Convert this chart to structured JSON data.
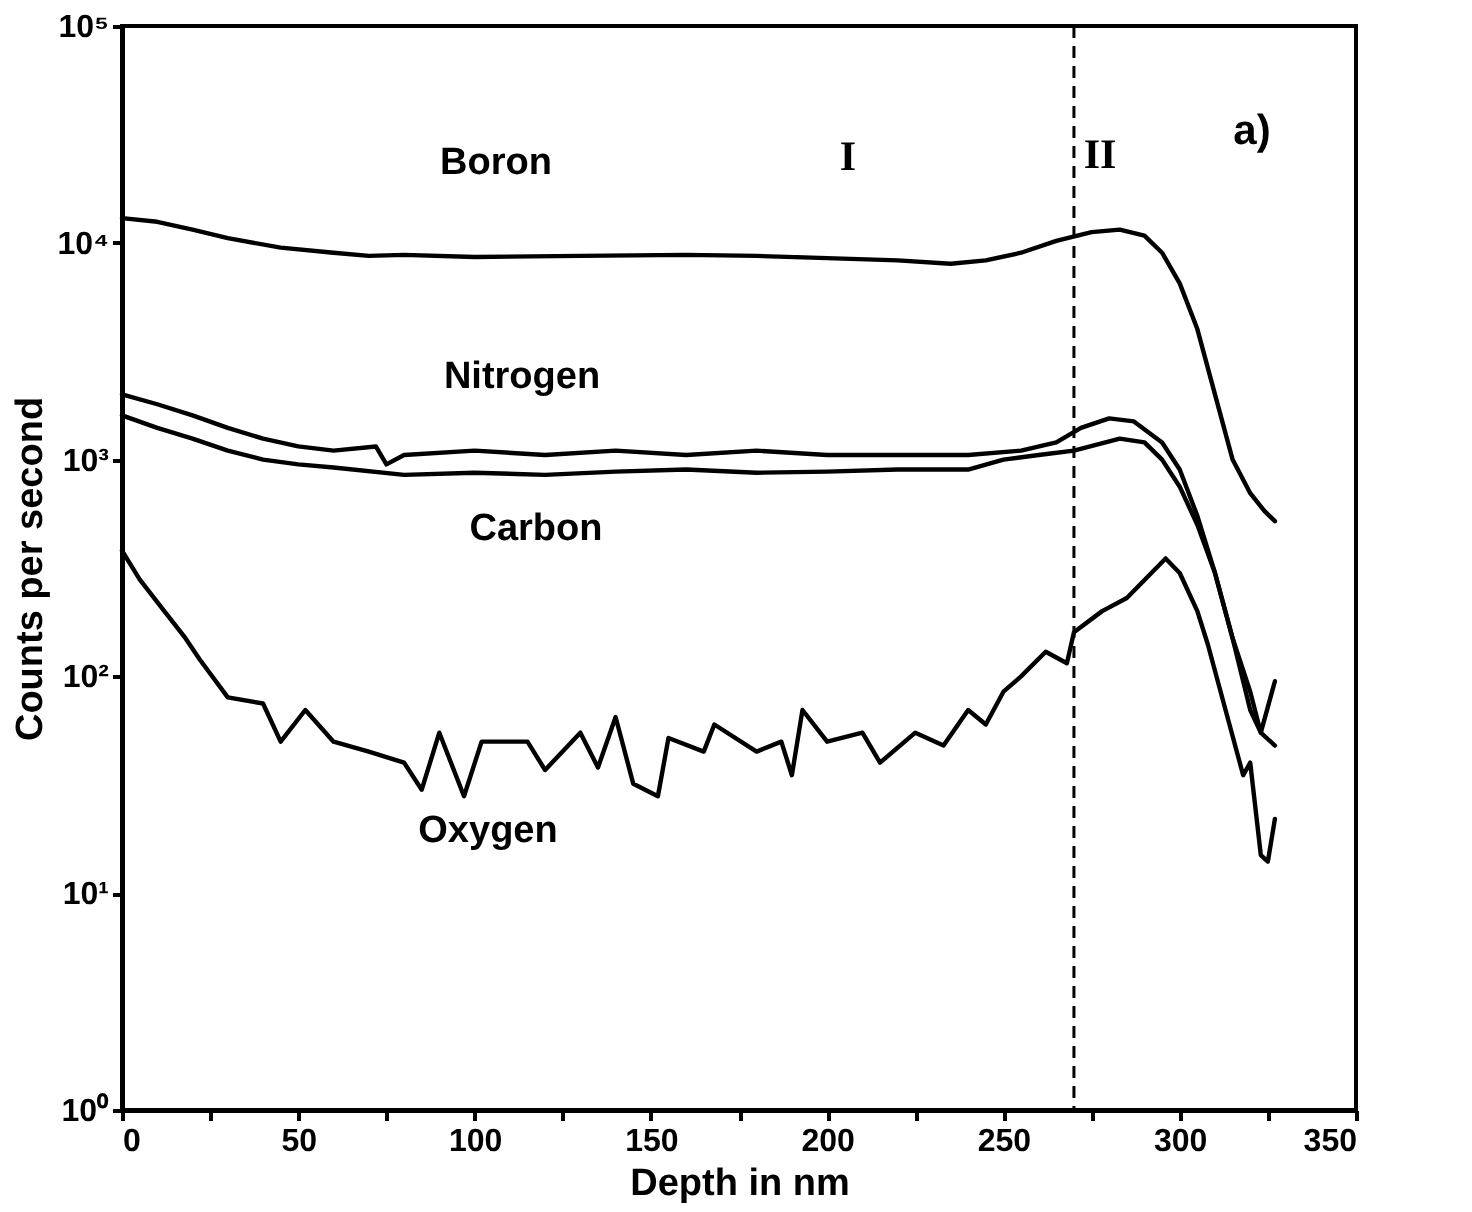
{
  "chart_data": {
    "type": "line",
    "xlabel": "Depth in nm",
    "ylabel": "Counts per second",
    "log": "y",
    "grid": false,
    "marker": "none",
    "line_style": "solid",
    "xlim": [
      0,
      350
    ],
    "ylim": [
      1,
      100000
    ],
    "xticks": [
      0,
      {
        "value": 25,
        "label": null
      },
      50,
      {
        "value": 75,
        "label": null
      },
      100,
      {
        "value": 125,
        "label": null
      },
      150,
      {
        "value": 175,
        "label": null
      },
      200,
      {
        "value": 225,
        "label": null
      },
      250,
      {
        "value": 275,
        "label": null
      },
      300,
      {
        "value": 325,
        "label": null
      },
      350
    ],
    "yticks": [
      {
        "value": 1,
        "label": "10⁰"
      },
      {
        "value": 10,
        "label": "10¹"
      },
      {
        "value": 100,
        "label": "10²"
      },
      {
        "value": 1000,
        "label": "10³"
      },
      {
        "value": 10000,
        "label": "10⁴"
      },
      {
        "value": 100000,
        "label": "10⁵"
      }
    ],
    "series": [
      {
        "name": "Boron",
        "color": "#000000",
        "x": [
          0,
          10,
          20,
          30,
          45,
          60,
          70,
          80,
          100,
          130,
          160,
          180,
          200,
          220,
          235,
          245,
          255,
          265,
          275,
          283,
          290,
          295,
          300,
          305,
          310,
          315,
          320,
          324,
          327
        ],
        "values": [
          13000,
          12500,
          11500,
          10500,
          9500,
          9000,
          8700,
          8800,
          8600,
          8700,
          8800,
          8700,
          8500,
          8300,
          8000,
          8300,
          9000,
          10200,
          11200,
          11500,
          10800,
          9000,
          6500,
          4000,
          2000,
          1000,
          700,
          580,
          520
        ]
      },
      {
        "name": "Nitrogen",
        "color": "#000000",
        "x": [
          0,
          10,
          20,
          30,
          40,
          50,
          60,
          72,
          75,
          80,
          100,
          120,
          140,
          160,
          180,
          200,
          220,
          240,
          255,
          265,
          272,
          280,
          287,
          295,
          300,
          305,
          310,
          315,
          320,
          323,
          327
        ],
        "values": [
          2000,
          1800,
          1600,
          1400,
          1250,
          1150,
          1100,
          1150,
          950,
          1050,
          1100,
          1050,
          1100,
          1050,
          1100,
          1050,
          1050,
          1050,
          1100,
          1200,
          1400,
          1550,
          1500,
          1200,
          900,
          550,
          300,
          150,
          70,
          55,
          48
        ]
      },
      {
        "name": "Carbon",
        "color": "#000000",
        "x": [
          0,
          10,
          20,
          30,
          40,
          50,
          60,
          80,
          100,
          120,
          140,
          160,
          180,
          200,
          220,
          240,
          250,
          260,
          270,
          283,
          290,
          295,
          300,
          305,
          310,
          315,
          320,
          323,
          327
        ],
        "values": [
          1600,
          1400,
          1250,
          1100,
          1000,
          950,
          920,
          850,
          870,
          850,
          880,
          900,
          870,
          880,
          900,
          900,
          1000,
          1050,
          1100,
          1250,
          1200,
          1000,
          750,
          500,
          300,
          150,
          85,
          55,
          95
        ]
      },
      {
        "name": "Oxygen",
        "color": "#000000",
        "x": [
          0,
          5,
          12,
          18,
          22,
          30,
          40,
          45,
          52,
          60,
          70,
          80,
          85,
          90,
          97,
          102,
          115,
          120,
          130,
          135,
          140,
          145,
          152,
          155,
          165,
          168,
          180,
          187,
          190,
          193,
          200,
          210,
          215,
          225,
          233,
          240,
          245,
          250,
          255,
          262,
          268,
          270,
          278,
          285,
          296,
          300,
          305,
          308,
          313,
          318,
          320,
          323,
          325,
          327
        ],
        "values": [
          380,
          280,
          200,
          150,
          120,
          80,
          75,
          50,
          70,
          50,
          45,
          40,
          30,
          55,
          28,
          50,
          50,
          37,
          55,
          38,
          65,
          32,
          28,
          52,
          45,
          60,
          45,
          50,
          35,
          70,
          50,
          55,
          40,
          55,
          48,
          70,
          60,
          85,
          100,
          130,
          115,
          160,
          200,
          230,
          350,
          300,
          200,
          140,
          70,
          35,
          40,
          15,
          14,
          22
        ]
      }
    ],
    "ref_lines": [
      {
        "axis": "x",
        "value": 270,
        "line_style": "dashed",
        "color": "#000000"
      }
    ],
    "annotations": [
      "I",
      "II",
      "a)"
    ]
  }
}
